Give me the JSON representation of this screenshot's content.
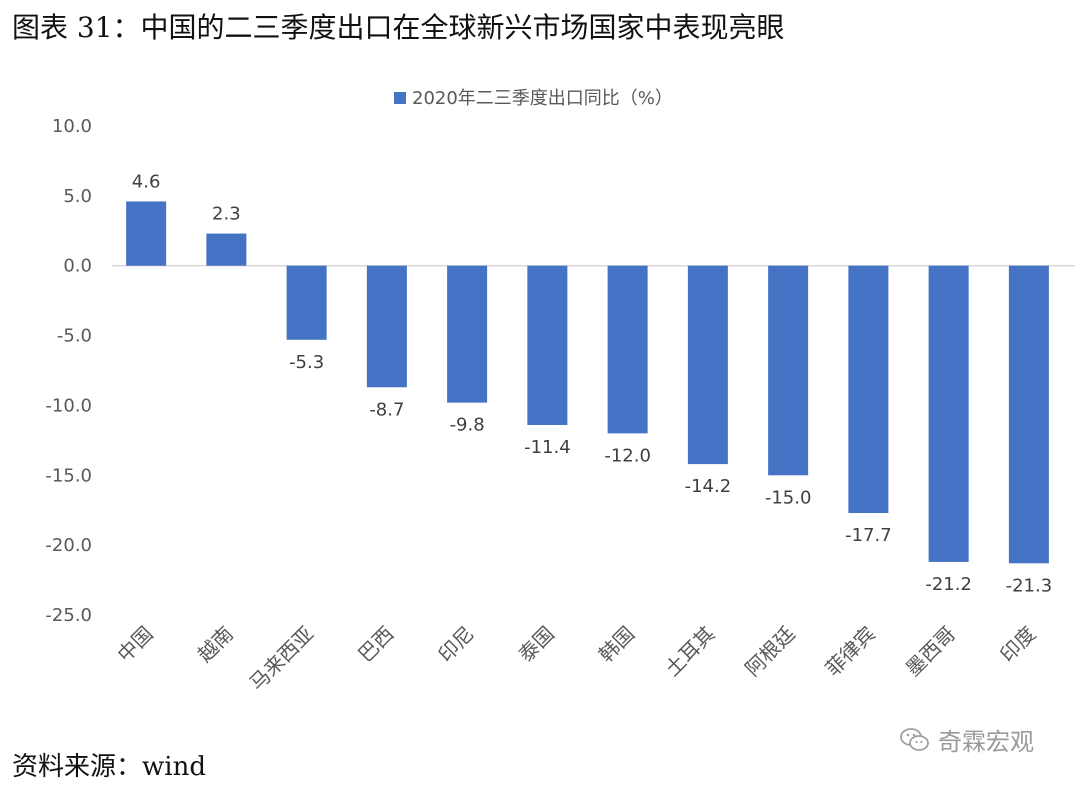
{
  "figure_title": "图表 31：中国的二三季度出口在全球新兴市场国家中表现亮眼",
  "source_note": "资料来源：wind",
  "watermark": {
    "text": "奇霖宏观",
    "icon": "wechat-icon"
  },
  "colors": {
    "bar": "#4472C4",
    "axis": "#d9d9d9",
    "text": "#595959"
  },
  "chart_data": {
    "type": "bar",
    "title": "",
    "xlabel": "",
    "ylabel": "",
    "legend": {
      "position": "top",
      "entries": [
        "2020年二三季度出口同比（%）"
      ]
    },
    "categories": [
      "中国",
      "越南",
      "马来西亚",
      "巴西",
      "印尼",
      "泰国",
      "韩国",
      "土耳其",
      "阿根廷",
      "菲律宾",
      "墨西哥",
      "印度"
    ],
    "series": [
      {
        "name": "2020年二三季度出口同比（%）",
        "values": [
          4.6,
          2.3,
          -5.3,
          -8.7,
          -9.8,
          -11.4,
          -12.0,
          -14.2,
          -15.0,
          -17.7,
          -21.2,
          -21.3
        ],
        "labels": [
          "4.6",
          "2.3",
          "-5.3",
          "-8.7",
          "-9.8",
          "-11.4",
          "-12.0",
          "-14.2",
          "-15.0",
          "-17.7",
          "-21.2",
          "-21.3"
        ]
      }
    ],
    "ylim": [
      -25,
      10
    ],
    "yticks": [
      10,
      5,
      0,
      -5,
      -10,
      -15,
      -20,
      -25
    ],
    "ytick_labels": [
      "10.0",
      "5.0",
      "0.0",
      "-5.0",
      "-10.0",
      "-15.0",
      "-20.0",
      "-25.0"
    ],
    "grid": false
  }
}
